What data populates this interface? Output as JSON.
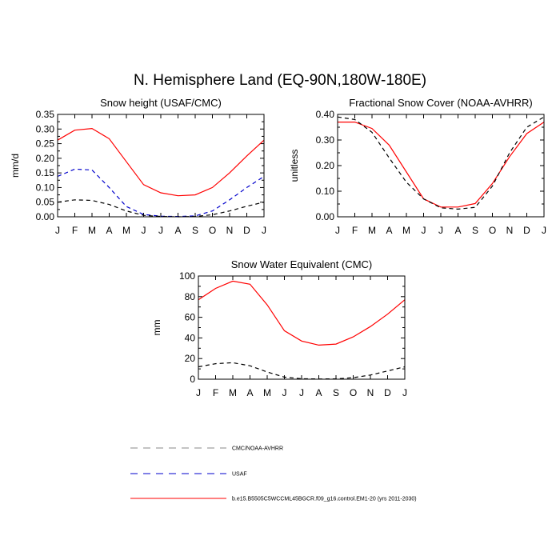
{
  "page_title": "N. Hemisphere Land (EQ-90N,180W-180E)",
  "colors": {
    "model": "#ff0000",
    "usaf": "#0000cc",
    "obs": "#000000"
  },
  "legend": [
    {
      "label": "CMC/NOAA-AVHRR",
      "color": "#888888",
      "dash": "dashed"
    },
    {
      "label": "USAF",
      "color": "#0000cc",
      "dash": "dashed"
    },
    {
      "label": "b.e15.B5505C5WCCML45BGCR.f09_g16.control.EM1-20 (yrs 2011-2030)",
      "color": "#ff0000",
      "dash": "solid"
    }
  ],
  "chart_data": [
    {
      "type": "line",
      "title": "Snow height (USAF/CMC)",
      "ylabel": "mm/d",
      "xlabel": "",
      "categories": [
        "J",
        "F",
        "M",
        "A",
        "M",
        "J",
        "J",
        "A",
        "S",
        "O",
        "N",
        "D",
        "J"
      ],
      "ylim": [
        0,
        0.35
      ],
      "yticks": [
        0.0,
        0.05,
        0.1,
        0.15,
        0.2,
        0.25,
        0.3,
        0.35
      ],
      "ytick_labels": [
        "0.00",
        "0.05",
        "0.10",
        "0.15",
        "0.20",
        "0.25",
        "0.30",
        "0.35"
      ],
      "series": [
        {
          "name": "model",
          "style": "solid",
          "values": [
            0.262,
            0.296,
            0.302,
            0.267,
            0.188,
            0.11,
            0.082,
            0.072,
            0.075,
            0.1,
            0.15,
            0.208,
            0.262
          ]
        },
        {
          "name": "USAF",
          "style": "dashed",
          "values": [
            0.138,
            0.163,
            0.16,
            0.1,
            0.035,
            0.008,
            0.002,
            0.001,
            0.003,
            0.02,
            0.058,
            0.1,
            0.138
          ]
        },
        {
          "name": "CMC",
          "style": "dashed",
          "values": [
            0.05,
            0.058,
            0.056,
            0.042,
            0.02,
            0.005,
            0.001,
            0.0,
            0.001,
            0.007,
            0.02,
            0.036,
            0.05
          ]
        }
      ]
    },
    {
      "type": "line",
      "title": "Fractional Snow Cover (NOAA-AVHRR)",
      "ylabel": "unitless",
      "xlabel": "",
      "categories": [
        "J",
        "F",
        "M",
        "A",
        "M",
        "J",
        "J",
        "A",
        "S",
        "O",
        "N",
        "D",
        "J"
      ],
      "ylim": [
        0,
        0.4
      ],
      "yticks": [
        0.0,
        0.1,
        0.2,
        0.3,
        0.4
      ],
      "ytick_labels": [
        "0.00",
        "0.10",
        "0.20",
        "0.30",
        "0.40"
      ],
      "series": [
        {
          "name": "model",
          "style": "solid",
          "values": [
            0.37,
            0.37,
            0.345,
            0.28,
            0.175,
            0.07,
            0.038,
            0.038,
            0.052,
            0.13,
            0.235,
            0.325,
            0.37
          ]
        },
        {
          "name": "NOAA-AVHRR",
          "style": "dashed",
          "values": [
            0.39,
            0.38,
            0.33,
            0.23,
            0.135,
            0.07,
            0.035,
            0.03,
            0.037,
            0.12,
            0.25,
            0.35,
            0.39
          ]
        }
      ]
    },
    {
      "type": "line",
      "title": "Snow Water Equivalent (CMC)",
      "ylabel": "mm",
      "xlabel": "",
      "categories": [
        "J",
        "F",
        "M",
        "A",
        "M",
        "J",
        "J",
        "A",
        "S",
        "O",
        "N",
        "D",
        "J"
      ],
      "ylim": [
        0,
        100
      ],
      "yticks": [
        0,
        20,
        40,
        60,
        80,
        100
      ],
      "ytick_labels": [
        "0",
        "20",
        "40",
        "60",
        "80",
        "100"
      ],
      "series": [
        {
          "name": "model",
          "style": "solid",
          "values": [
            77,
            88,
            95,
            92,
            72,
            47,
            37,
            33,
            34,
            41,
            51,
            63,
            77
          ]
        },
        {
          "name": "CMC",
          "style": "dashed",
          "values": [
            12,
            15,
            16,
            13,
            7,
            2,
            0.5,
            0.2,
            0.3,
            1.5,
            4,
            8,
            12
          ]
        }
      ]
    }
  ]
}
